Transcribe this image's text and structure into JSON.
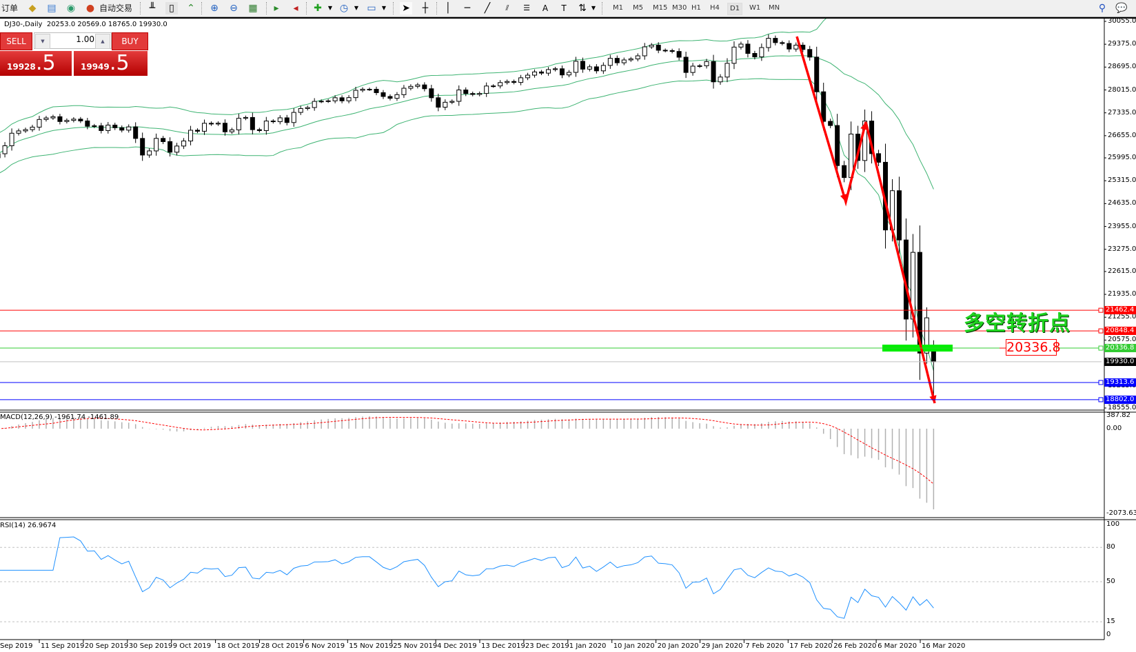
{
  "toolbar": {
    "new_order_label": "订单",
    "auto_trade_label": "自动交易",
    "timeframes": [
      "M1",
      "M5",
      "M15",
      "M30",
      "H1",
      "H4",
      "D1",
      "W1",
      "MN"
    ],
    "active_timeframe": "D1"
  },
  "chart_header": {
    "symbol": "DJ30-,Daily",
    "ohlc": "20253.0 20569.0 18765.0 19930.0"
  },
  "trade_panel": {
    "sell_label": "SELL",
    "buy_label": "BUY",
    "lot": "1.00",
    "sell_price_main": "19928",
    "sell_price_frac": ".5",
    "buy_price_main": "19949",
    "buy_price_frac": ".5"
  },
  "price_axis": {
    "ticks": [
      "30055.0",
      "29375.0",
      "28695.0",
      "28015.0",
      "27335.0",
      "26655.0",
      "25995.0",
      "25315.0",
      "24635.0",
      "23955.0",
      "23275.0",
      "22615.0",
      "21935.0",
      "21255.0",
      "20575.0",
      "19215.0",
      "18555.0"
    ],
    "levels": [
      {
        "value": "21462.4",
        "color": "#ff0000"
      },
      {
        "value": "20848.4",
        "color": "#ff0000"
      },
      {
        "value": "20336.8",
        "color": "#33cc33"
      },
      {
        "value": "19930.0",
        "color": "#000000",
        "line_color": "#c0c0c0"
      },
      {
        "value": "19313.6",
        "color": "#0000ff"
      },
      {
        "value": "18802.0",
        "color": "#0000ff"
      }
    ]
  },
  "annotation": {
    "text": "多空转折点",
    "level_label": "20336.8",
    "zone_color": "#00ee00",
    "arrow_color": "#ff0000"
  },
  "macd": {
    "label": "MACD(12,26,9) -1961.74 -1461.89",
    "ticks": [
      "387.82",
      "0.00",
      "-2073.63"
    ]
  },
  "rsi": {
    "label": "RSI(14) 26.9674",
    "ticks": [
      "100",
      "80",
      "50",
      "15",
      "0"
    ],
    "color": "#1e90ff"
  },
  "date_axis": {
    "labels": [
      "Sep 2019",
      "11 Sep 2019",
      "20 Sep 2019",
      "30 Sep 2019",
      "9 Oct 2019",
      "18 Oct 2019",
      "28 Oct 2019",
      "6 Nov 2019",
      "15 Nov 2019",
      "25 Nov 2019",
      "4 Dec 2019",
      "13 Dec 2019",
      "23 Dec 2019",
      "1 Jan 2020",
      "10 Jan 2020",
      "20 Jan 2020",
      "29 Jan 2020",
      "7 Feb 2020",
      "17 Feb 2020",
      "26 Feb 2020",
      "6 Mar 2020",
      "16 Mar 2020"
    ]
  },
  "chart_data": {
    "type": "candlestick",
    "indicators": [
      "Bollinger Bands",
      "MACD(12,26,9)",
      "RSI(14)"
    ],
    "band_color": "#3cb371",
    "closes": [
      26118,
      26355,
      26728,
      26797,
      26835,
      26909,
      27137,
      27182,
      27219,
      27076,
      27110,
      27147,
      27094,
      26935,
      26950,
      26807,
      26970,
      26891,
      26820,
      26917,
      26573,
      26079,
      26202,
      26574,
      26478,
      26164,
      26347,
      26497,
      26817,
      26787,
      27024,
      27002,
      27026,
      26770,
      26827,
      27172,
      27197,
      26834,
      26806,
      27091,
      27071,
      27186,
      27046,
      27347,
      27462,
      27492,
      27675,
      27681,
      27691,
      27783,
      27691,
      27787,
      28004,
      28036,
      28036,
      27934,
      27821,
      27767,
      27875,
      28066,
      28121,
      28165,
      28051,
      27783,
      27502,
      27649,
      27677,
      28015,
      27909,
      27882,
      27911,
      28132,
      28135,
      28235,
      28267,
      28239,
      28377,
      28455,
      28551,
      28515,
      28621,
      28645,
      28462,
      28538,
      28868,
      28634,
      28703,
      28583,
      28745,
      28956,
      28823,
      28907,
      28939,
      29030,
      29297,
      29348,
      29196,
      29186,
      29160,
      28989,
      28535,
      28723,
      28734,
      28859,
      28256,
      28399,
      28807,
      29290,
      29379,
      29102,
      28999,
      29276,
      29551,
      29423,
      29398,
      29232,
      29348,
      29219,
      28992,
      27960,
      27081,
      26957,
      25766,
      25409,
      26703,
      25917,
      27090,
      26121,
      25864,
      23851,
      25018,
      23553,
      21200,
      23185,
      20188,
      21237,
      19930
    ],
    "last_bar": {
      "open": 20253.0,
      "high": 20569.0,
      "low": 18765.0,
      "close": 19930.0
    }
  }
}
